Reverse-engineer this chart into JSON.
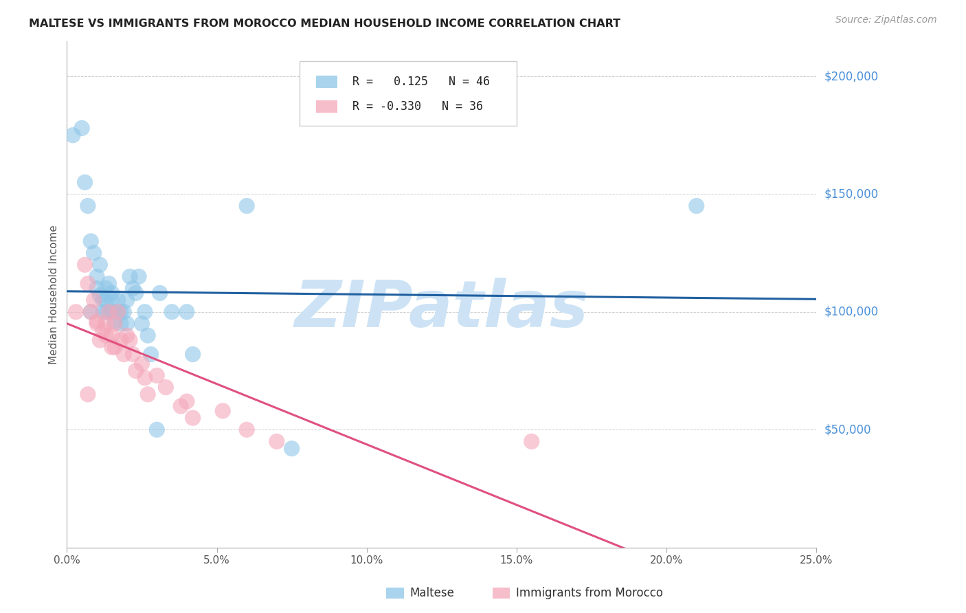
{
  "title": "MALTESE VS IMMIGRANTS FROM MOROCCO MEDIAN HOUSEHOLD INCOME CORRELATION CHART",
  "source": "Source: ZipAtlas.com",
  "ylabel_label": "Median Household Income",
  "xlim": [
    0.0,
    0.25
  ],
  "ylim": [
    0,
    215000
  ],
  "yticks": [
    0,
    50000,
    100000,
    150000,
    200000
  ],
  "ytick_labels": [
    "",
    "$50,000",
    "$100,000",
    "$150,000",
    "$200,000"
  ],
  "xtick_labels": [
    "0.0%",
    "5.0%",
    "10.0%",
    "15.0%",
    "20.0%",
    "25.0%"
  ],
  "xticks": [
    0.0,
    0.05,
    0.1,
    0.15,
    0.2,
    0.25
  ],
  "maltese_color": "#8ec6e8",
  "morocco_color": "#f4a7b9",
  "maltese_line_color": "#2060a0",
  "morocco_line_color": "#e05080",
  "background_color": "#ffffff",
  "grid_color": "#cccccc",
  "ytick_color": "#4a90d9",
  "watermark_text": "ZIPatlas",
  "watermark_color": "#cde3f5",
  "maltese_x": [
    0.002,
    0.005,
    0.006,
    0.007,
    0.008,
    0.009,
    0.01,
    0.01,
    0.011,
    0.011,
    0.012,
    0.012,
    0.013,
    0.013,
    0.013,
    0.014,
    0.014,
    0.015,
    0.015,
    0.015,
    0.016,
    0.016,
    0.017,
    0.017,
    0.018,
    0.018,
    0.019,
    0.02,
    0.02,
    0.021,
    0.022,
    0.023,
    0.024,
    0.025,
    0.026,
    0.027,
    0.028,
    0.03,
    0.031,
    0.035,
    0.04,
    0.042,
    0.06,
    0.075,
    0.21,
    0.008
  ],
  "maltese_y": [
    175000,
    178000,
    155000,
    145000,
    130000,
    125000,
    115000,
    110000,
    107000,
    120000,
    105000,
    100000,
    110000,
    105000,
    100000,
    112000,
    100000,
    108000,
    105000,
    100000,
    100000,
    96000,
    100000,
    105000,
    95000,
    100000,
    100000,
    95000,
    105000,
    115000,
    110000,
    108000,
    115000,
    95000,
    100000,
    90000,
    82000,
    50000,
    108000,
    100000,
    100000,
    82000,
    145000,
    42000,
    145000,
    100000
  ],
  "morocco_x": [
    0.003,
    0.006,
    0.007,
    0.008,
    0.009,
    0.01,
    0.01,
    0.011,
    0.012,
    0.013,
    0.013,
    0.014,
    0.015,
    0.015,
    0.016,
    0.016,
    0.017,
    0.018,
    0.019,
    0.02,
    0.021,
    0.022,
    0.023,
    0.025,
    0.026,
    0.027,
    0.03,
    0.033,
    0.038,
    0.04,
    0.042,
    0.052,
    0.06,
    0.07,
    0.155,
    0.007
  ],
  "morocco_y": [
    100000,
    120000,
    112000,
    100000,
    105000,
    96000,
    95000,
    88000,
    92000,
    90000,
    95000,
    100000,
    85000,
    90000,
    85000,
    95000,
    100000,
    88000,
    82000,
    90000,
    88000,
    82000,
    75000,
    78000,
    72000,
    65000,
    73000,
    68000,
    60000,
    62000,
    55000,
    58000,
    50000,
    45000,
    45000,
    65000
  ]
}
